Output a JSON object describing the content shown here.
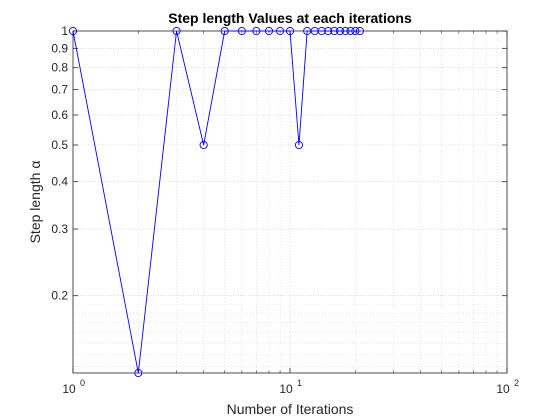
{
  "chart_data": {
    "type": "line",
    "title": "Step length Values at each iterations",
    "xlabel": "Number of Iterations",
    "ylabel": "Step length α",
    "xscale": "log",
    "yscale": "log",
    "xlim": [
      1,
      100
    ],
    "ylim": [
      0.125,
      1
    ],
    "grid": true,
    "minor_grid": true,
    "x_ticks": [
      {
        "value": 1,
        "base": "10",
        "exp": "0"
      },
      {
        "value": 10,
        "base": "10",
        "exp": "1"
      },
      {
        "value": 100,
        "base": "10",
        "exp": "2"
      }
    ],
    "y_ticks": [
      {
        "value": 0.2,
        "label": "0.2"
      },
      {
        "value": 0.3,
        "label": "0.3"
      },
      {
        "value": 0.4,
        "label": "0.4"
      },
      {
        "value": 0.5,
        "label": "0.5"
      },
      {
        "value": 0.6,
        "label": "0.6"
      },
      {
        "value": 0.7,
        "label": "0.7"
      },
      {
        "value": 0.8,
        "label": "0.8"
      },
      {
        "value": 0.9,
        "label": "0.9"
      },
      {
        "value": 1,
        "label": "1"
      }
    ],
    "series": [
      {
        "color": "#0000ff",
        "marker": "circle",
        "x": [
          1,
          2,
          3,
          4,
          5,
          6,
          7,
          8,
          9,
          10,
          11,
          12,
          13,
          14,
          15,
          16,
          17,
          18,
          19,
          20,
          21
        ],
        "y": [
          1,
          0.125,
          1,
          0.5,
          1,
          1,
          1,
          1,
          1,
          1,
          0.5,
          1,
          1,
          1,
          1,
          1,
          1,
          1,
          1,
          1,
          1
        ]
      }
    ]
  }
}
